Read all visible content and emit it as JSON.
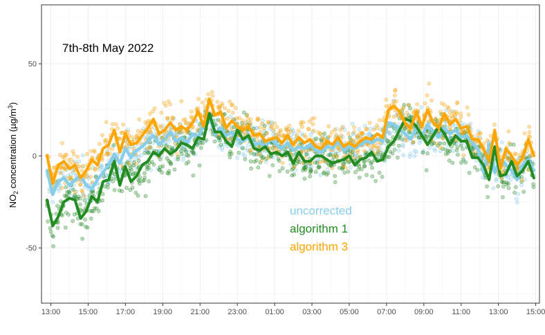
{
  "chart_data": {
    "type": "line",
    "title": "",
    "annotation": "7th-8th May 2022",
    "xlabel": "",
    "ylabel": "NO2 concentration (µg/m3)",
    "ylabel_parts": {
      "prefix": "NO",
      "sub": "2",
      "mid": " concentration (µg/m",
      "sup": "3",
      "suffix": ")"
    },
    "xlim": [
      13.0,
      39.7
    ],
    "ylim": [
      -80,
      82
    ],
    "x_ticks": [
      13.5,
      15.5,
      17.5,
      19.5,
      21.5,
      23.5,
      25.5,
      27.5,
      29.5,
      31.5,
      33.5,
      35.5,
      37.5,
      39.5
    ],
    "x_tick_labels": [
      "13:00",
      "15:00",
      "17:00",
      "19:00",
      "21:00",
      "23:00",
      "01:00",
      "03:00",
      "05:00",
      "07:00",
      "09:00",
      "11:00",
      "13:00",
      "15:00"
    ],
    "y_ticks": [
      -50,
      0,
      50
    ],
    "y_tick_labels": [
      "-50",
      "0",
      "50"
    ],
    "grid": true,
    "legend_position": "center",
    "series": [
      {
        "name": "uncorrected",
        "color": "#87CEEB",
        "x": [
          13.3,
          13.6,
          13.9,
          14.2,
          14.5,
          14.8,
          15.1,
          15.4,
          15.7,
          16.0,
          16.3,
          16.6,
          16.9,
          17.2,
          17.5,
          17.8,
          18.1,
          18.4,
          18.7,
          19.0,
          19.3,
          19.6,
          19.9,
          20.2,
          20.5,
          20.8,
          21.1,
          21.4,
          21.7,
          22.0,
          22.3,
          22.6,
          22.9,
          23.2,
          23.5,
          23.8,
          24.1,
          24.4,
          24.7,
          25.0,
          25.3,
          25.6,
          25.9,
          26.2,
          26.5,
          26.8,
          27.1,
          27.4,
          27.7,
          28.0,
          28.3,
          28.6,
          28.9,
          29.2,
          29.5,
          29.8,
          30.1,
          30.4,
          30.7,
          31.0,
          31.3,
          31.6,
          31.9,
          32.2,
          32.5,
          32.8,
          33.1,
          33.4,
          33.7,
          34.0,
          34.3,
          34.6,
          34.9,
          35.2,
          35.5,
          35.8,
          36.1,
          36.4,
          36.7,
          37.0,
          37.3,
          37.6,
          37.9,
          38.2,
          38.5,
          38.8,
          39.1,
          39.4
        ],
        "values": [
          -8,
          -21,
          -14,
          -12,
          -16,
          -13,
          -11,
          -16,
          -18,
          -13,
          -9,
          -5,
          1,
          -4,
          4,
          -1,
          3,
          5,
          8,
          11,
          6,
          9,
          13,
          8,
          10,
          7,
          12,
          10,
          17,
          21,
          12,
          15,
          11,
          13,
          9,
          8,
          10,
          6,
          7,
          5,
          9,
          6,
          4,
          7,
          3,
          5,
          4,
          6,
          3,
          2,
          5,
          4,
          8,
          3,
          5,
          4,
          6,
          8,
          7,
          9,
          8,
          18,
          17,
          14,
          12,
          9,
          15,
          11,
          17,
          13,
          10,
          15,
          12,
          14,
          10,
          11,
          7,
          4,
          -9,
          6,
          -9,
          -2,
          -5,
          -8,
          -13,
          -5,
          -2,
          -8
        ]
      },
      {
        "name": "algorithm 1",
        "color": "#228B22",
        "x": [
          13.3,
          13.6,
          13.9,
          14.2,
          14.5,
          14.8,
          15.1,
          15.4,
          15.7,
          16.0,
          16.3,
          16.6,
          16.9,
          17.2,
          17.5,
          17.8,
          18.1,
          18.4,
          18.7,
          19.0,
          19.3,
          19.6,
          19.9,
          20.2,
          20.5,
          20.8,
          21.1,
          21.4,
          21.7,
          22.0,
          22.3,
          22.6,
          22.9,
          23.2,
          23.5,
          23.8,
          24.1,
          24.4,
          24.7,
          25.0,
          25.3,
          25.6,
          25.9,
          26.2,
          26.5,
          26.8,
          27.1,
          27.4,
          27.7,
          28.0,
          28.3,
          28.6,
          28.9,
          29.2,
          29.5,
          29.8,
          30.1,
          30.4,
          30.7,
          31.0,
          31.3,
          31.6,
          31.9,
          32.2,
          32.5,
          32.8,
          33.1,
          33.4,
          33.7,
          34.0,
          34.3,
          34.6,
          34.9,
          35.2,
          35.5,
          35.8,
          36.1,
          36.4,
          36.7,
          37.0,
          37.3,
          37.6,
          37.9,
          38.2,
          38.5,
          38.8,
          39.1,
          39.4
        ],
        "values": [
          -24,
          -38,
          -33,
          -25,
          -23,
          -24,
          -34,
          -30,
          -22,
          -25,
          -14,
          -13,
          -3,
          -16,
          -6,
          -14,
          -11,
          -5,
          -3,
          2,
          0,
          4,
          1,
          3,
          7,
          6,
          4,
          10,
          9,
          23,
          13,
          13,
          8,
          5,
          14,
          9,
          11,
          4,
          3,
          5,
          1,
          2,
          0,
          2,
          -4,
          2,
          -3,
          -3,
          0,
          0,
          -2,
          -4,
          -3,
          -2,
          0,
          -5,
          -2,
          -1,
          2,
          -3,
          -2,
          5,
          8,
          14,
          20,
          19,
          16,
          11,
          6,
          11,
          16,
          12,
          6,
          11,
          8,
          8,
          -1,
          -1,
          -5,
          -13,
          5,
          -11,
          -10,
          -3,
          -11,
          -8,
          -3,
          -12
        ]
      },
      {
        "name": "algorithm 3",
        "color": "#FFA500",
        "x": [
          13.3,
          13.6,
          13.9,
          14.2,
          14.5,
          14.8,
          15.1,
          15.4,
          15.7,
          16.0,
          16.3,
          16.6,
          16.9,
          17.2,
          17.5,
          17.8,
          18.1,
          18.4,
          18.7,
          19.0,
          19.3,
          19.6,
          19.9,
          20.2,
          20.5,
          20.8,
          21.1,
          21.4,
          21.7,
          22.0,
          22.3,
          22.6,
          22.9,
          23.2,
          23.5,
          23.8,
          24.1,
          24.4,
          24.7,
          25.0,
          25.3,
          25.6,
          25.9,
          26.2,
          26.5,
          26.8,
          27.1,
          27.4,
          27.7,
          28.0,
          28.3,
          28.6,
          28.9,
          29.2,
          29.5,
          29.8,
          30.1,
          30.4,
          30.7,
          31.0,
          31.3,
          31.6,
          31.9,
          32.2,
          32.5,
          32.8,
          33.1,
          33.4,
          33.7,
          34.0,
          34.3,
          34.6,
          34.9,
          35.2,
          35.5,
          35.8,
          36.1,
          36.4,
          36.7,
          37.0,
          37.3,
          37.6,
          37.9,
          38.2,
          38.5,
          38.8,
          39.1,
          39.4
        ],
        "values": [
          0,
          -15,
          -5,
          -3,
          -7,
          -5,
          -12,
          -8,
          -2,
          -5,
          4,
          6,
          14,
          2,
          12,
          6,
          7,
          11,
          15,
          20,
          12,
          14,
          18,
          14,
          16,
          14,
          18,
          24,
          16,
          31,
          22,
          24,
          15,
          19,
          16,
          14,
          16,
          11,
          12,
          8,
          9,
          10,
          7,
          11,
          6,
          10,
          7,
          9,
          5,
          4,
          8,
          6,
          10,
          5,
          7,
          5,
          8,
          10,
          9,
          12,
          10,
          25,
          27,
          24,
          18,
          15,
          24,
          16,
          25,
          18,
          15,
          23,
          17,
          20,
          15,
          16,
          9,
          9,
          4,
          -3,
          14,
          -7,
          4,
          0,
          -5,
          -1,
          9,
          0
        ]
      }
    ]
  }
}
